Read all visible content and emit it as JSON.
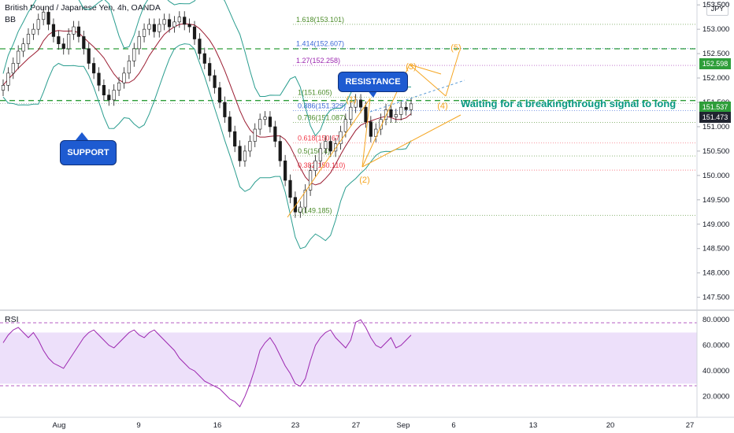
{
  "header": {
    "title": "British Pound / Japanese Yen, 4h, OANDA",
    "indicator_bb": "BB",
    "indicator_rsi": "RSI",
    "currency": "JPY"
  },
  "colors": {
    "green": "#089981",
    "red": "#f23645",
    "orange": "#f5a623",
    "bb_band": "#2a9d8f",
    "bb_mid": "#9b1c31",
    "rsi_line": "#9c27b0",
    "rsi_band": "#ede0fa",
    "callout": "#1e5bd1",
    "breakout_green": "#2e9e3a",
    "last_price_bg": "#202430"
  },
  "chart_data": {
    "type": "candlestick",
    "price_axis": {
      "ticks": [
        "153.500",
        "153.000",
        "152.500",
        "152.000",
        "151.500",
        "151.000",
        "150.500",
        "150.000",
        "149.500",
        "149.000",
        "148.500",
        "148.000",
        "147.500"
      ],
      "ylim": [
        147.3,
        153.6
      ]
    },
    "rsi_axis": {
      "ticks": [
        "80.0000",
        "60.0000",
        "40.0000",
        "20.0000"
      ],
      "ylim": [
        5,
        85
      ],
      "band": [
        30,
        70
      ]
    },
    "x_axis_labels": [
      "Aug",
      "9",
      "16",
      "23",
      "27",
      "Sep",
      "6",
      "13",
      "20",
      "27"
    ],
    "price_labels": {
      "breakout": "152.598",
      "upper": "151.537",
      "last": "151.473"
    },
    "fib_levels": [
      {
        "label": "1.618(153.101)",
        "value": 153.101,
        "color": "#4c8c2a"
      },
      {
        "label": "1.414(152.607)",
        "value": 152.607,
        "color": "#3a67d8"
      },
      {
        "label": "1.27(152.258)",
        "value": 152.258,
        "color": "#9c27b0"
      },
      {
        "label": "1(151.605)",
        "value": 151.605,
        "color": "#4c8c2a"
      },
      {
        "label": "0.886(151.329)",
        "value": 151.329,
        "color": "#3a67d8"
      },
      {
        "label": "0.786(151.087)",
        "value": 151.087,
        "color": "#4c8c2a"
      },
      {
        "label": "0.618(150.67)",
        "value": 150.67,
        "color": "#f23645"
      },
      {
        "label": "0.5(150.4)",
        "value": 150.4,
        "color": "#4c8c2a"
      },
      {
        "label": "0.382(150.110)",
        "value": 150.11,
        "color": "#f23645"
      },
      {
        "label": "0(149.185)",
        "value": 149.185,
        "color": "#4c8c2a"
      }
    ],
    "waves": [
      "(1)",
      "(2)",
      "(3)",
      "(4)",
      "(5)"
    ],
    "annotations": {
      "support": "SUPPORT",
      "resistance": "RESISTANCE",
      "note": "Waiting for a breakingthrough signal to long"
    },
    "close": [
      151.85,
      152.1,
      152.3,
      152.55,
      152.7,
      152.9,
      153.0,
      153.2,
      153.35,
      153.1,
      152.85,
      152.7,
      152.6,
      152.9,
      153.05,
      152.85,
      152.6,
      152.3,
      152.1,
      151.85,
      151.65,
      151.55,
      151.75,
      151.9,
      152.1,
      152.35,
      152.6,
      152.85,
      153.0,
      153.1,
      152.95,
      153.1,
      153.2,
      153.05,
      153.15,
      153.25,
      153.1,
      153.05,
      152.8,
      152.5,
      152.3,
      152.05,
      151.8,
      151.5,
      151.2,
      150.9,
      150.6,
      150.3,
      150.5,
      150.7,
      150.95,
      151.15,
      151.2,
      151.0,
      150.7,
      150.3,
      149.9,
      149.55,
      149.25,
      149.35,
      149.7,
      150.1,
      150.3,
      150.55,
      150.7,
      150.5,
      150.65,
      150.9,
      151.15,
      151.4,
      151.55,
      151.4,
      151.1,
      150.8,
      150.95,
      151.15,
      151.35,
      151.2,
      151.25,
      151.4,
      151.35,
      151.47
    ],
    "rsi": [
      62,
      68,
      72,
      74,
      70,
      66,
      70,
      64,
      56,
      50,
      46,
      44,
      42,
      48,
      54,
      60,
      66,
      70,
      72,
      68,
      64,
      60,
      58,
      62,
      66,
      70,
      72,
      68,
      66,
      70,
      72,
      68,
      64,
      60,
      56,
      50,
      46,
      42,
      40,
      36,
      32,
      30,
      28,
      26,
      22,
      18,
      16,
      12,
      20,
      30,
      42,
      56,
      62,
      66,
      60,
      52,
      44,
      38,
      30,
      28,
      34,
      48,
      60,
      66,
      70,
      72,
      66,
      62,
      58,
      64,
      78,
      80,
      74,
      66,
      60,
      58,
      62,
      66,
      58,
      60,
      64,
      68
    ]
  }
}
